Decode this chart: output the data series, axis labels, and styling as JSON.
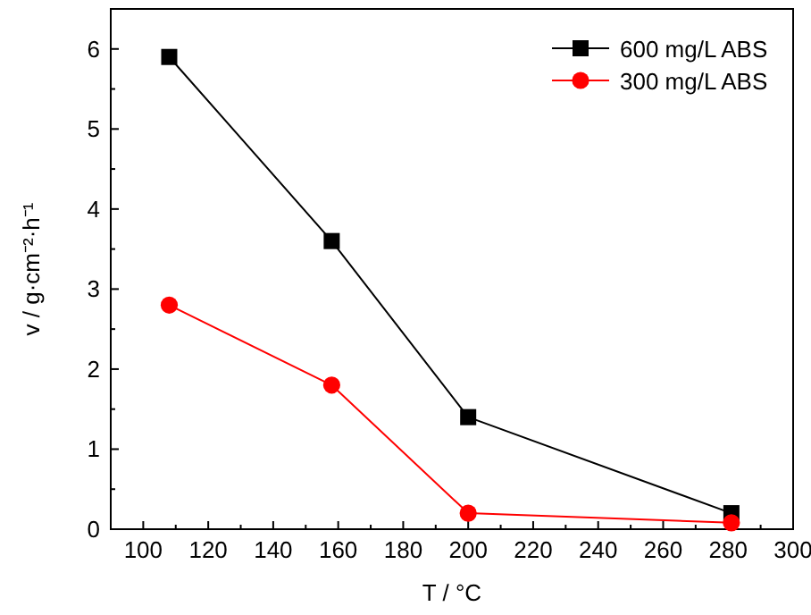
{
  "chart_data": {
    "type": "line",
    "xlabel": "T / °C",
    "ylabel": "v / g·cm⁻²·h⁻¹",
    "xlim": [
      90,
      300
    ],
    "ylim": [
      0,
      6.5
    ],
    "xticks": [
      {
        "value": 90,
        "label": null
      },
      100,
      {
        "value": 110,
        "label": null
      },
      120,
      {
        "value": 130,
        "label": null
      },
      140,
      {
        "value": 150,
        "label": null
      },
      160,
      {
        "value": 170,
        "label": null
      },
      180,
      {
        "value": 190,
        "label": null
      },
      200,
      {
        "value": 210,
        "label": null
      },
      220,
      {
        "value": 230,
        "label": null
      },
      240,
      {
        "value": 250,
        "label": null
      },
      260,
      {
        "value": 270,
        "label": null
      },
      280,
      {
        "value": 290,
        "label": null
      },
      300
    ],
    "yticks": [
      0,
      {
        "value": 0.5,
        "label": null
      },
      1,
      {
        "value": 1.5,
        "label": null
      },
      2,
      {
        "value": 2.5,
        "label": null
      },
      3,
      {
        "value": 3.5,
        "label": null
      },
      4,
      {
        "value": 4.5,
        "label": null
      },
      5,
      {
        "value": 5.5,
        "label": null
      },
      6
    ],
    "legend": "top right",
    "grid": false,
    "series": [
      {
        "name": "600 mg/L ABS",
        "color": "#000000",
        "marker": "square",
        "x": [
          108,
          158,
          200,
          281
        ],
        "values": [
          5.9,
          3.6,
          1.4,
          0.2
        ]
      },
      {
        "name": "300 mg/L ABS",
        "color": "#ff0000",
        "marker": "circle",
        "x": [
          108,
          158,
          200,
          281
        ],
        "values": [
          2.8,
          1.8,
          0.2,
          0.08
        ]
      }
    ]
  }
}
